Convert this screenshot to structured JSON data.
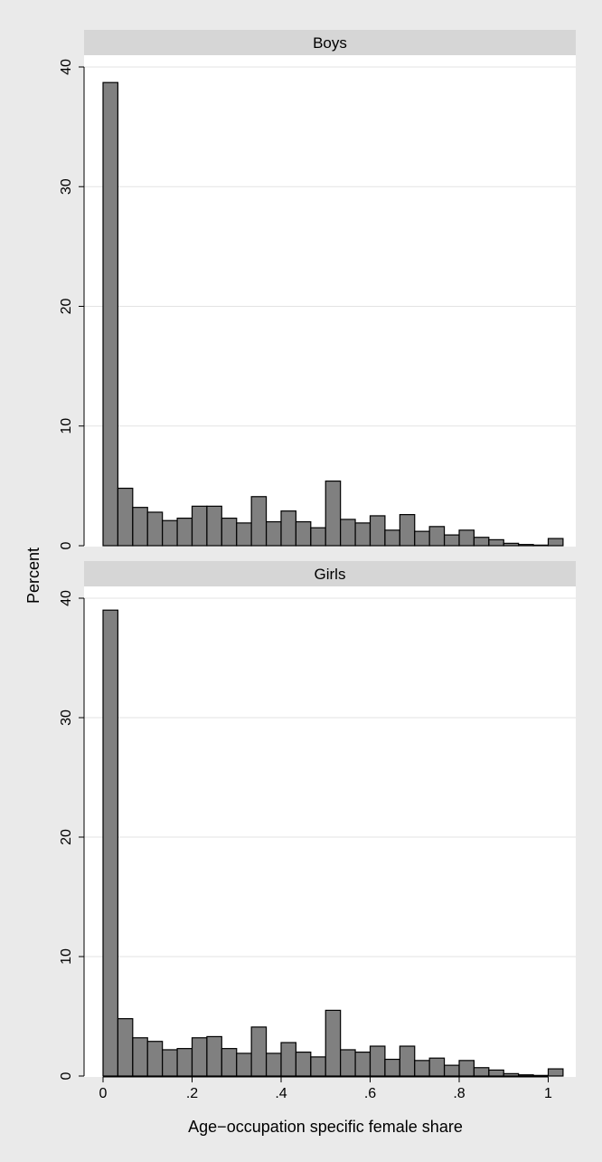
{
  "chart_data": {
    "type": "bar",
    "xlabel": "Age−occupation specific female share",
    "ylabel": "Percent",
    "xlim": [
      0,
      1.05
    ],
    "ylim": [
      0,
      40
    ],
    "x_ticks": [
      0,
      0.2,
      0.4,
      0.6,
      0.8,
      1
    ],
    "x_tick_labels": [
      "0",
      ".2",
      ".4",
      ".6",
      ".8",
      "1"
    ],
    "y_ticks": [
      0,
      10,
      20,
      30,
      40
    ],
    "y_tick_labels": [
      "0",
      "10",
      "20",
      "30",
      "40"
    ],
    "bin_width": 0.0333,
    "grid": true,
    "colors": {
      "bar": "#808080",
      "bar_edge": "#000000",
      "panel_header": "#d6d6d6",
      "plot_bg": "#ffffff",
      "outer_bg": "#eaeaea",
      "grid": "#e3e3e3"
    },
    "panels": [
      {
        "title": "Boys",
        "bins_start": [
          0,
          0.0333,
          0.0667,
          0.1,
          0.1333,
          0.1667,
          0.2,
          0.2333,
          0.2667,
          0.3,
          0.3333,
          0.3667,
          0.4,
          0.4333,
          0.4667,
          0.5,
          0.5333,
          0.5667,
          0.6,
          0.6333,
          0.6667,
          0.7,
          0.7333,
          0.7667,
          0.8,
          0.8333,
          0.8667,
          0.9,
          0.9333,
          0.9667,
          1.0
        ],
        "values": [
          38.7,
          4.8,
          3.2,
          2.8,
          2.1,
          2.3,
          3.3,
          3.3,
          2.3,
          1.9,
          4.1,
          2.0,
          2.9,
          2.0,
          1.5,
          5.4,
          2.2,
          1.9,
          2.5,
          1.3,
          2.6,
          1.2,
          1.6,
          0.9,
          1.3,
          0.7,
          0.5,
          0.2,
          0.1,
          0.05,
          0.6
        ]
      },
      {
        "title": "Girls",
        "bins_start": [
          0,
          0.0333,
          0.0667,
          0.1,
          0.1333,
          0.1667,
          0.2,
          0.2333,
          0.2667,
          0.3,
          0.3333,
          0.3667,
          0.4,
          0.4333,
          0.4667,
          0.5,
          0.5333,
          0.5667,
          0.6,
          0.6333,
          0.6667,
          0.7,
          0.7333,
          0.7667,
          0.8,
          0.8333,
          0.8667,
          0.9,
          0.9333,
          0.9667,
          1.0
        ],
        "values": [
          39.0,
          4.8,
          3.2,
          2.9,
          2.2,
          2.3,
          3.2,
          3.3,
          2.3,
          1.9,
          4.1,
          1.9,
          2.8,
          2.0,
          1.6,
          5.5,
          2.2,
          2.0,
          2.5,
          1.4,
          2.5,
          1.3,
          1.5,
          0.9,
          1.3,
          0.7,
          0.5,
          0.2,
          0.1,
          0.05,
          0.6
        ]
      }
    ]
  }
}
